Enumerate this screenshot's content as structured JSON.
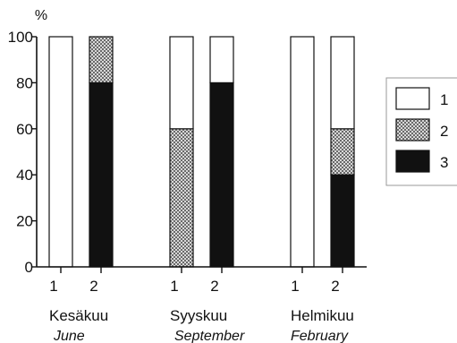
{
  "chart_data": {
    "type": "bar",
    "stacked": true,
    "ylabel": "%",
    "ylim": [
      0,
      100
    ],
    "yticks": [
      0,
      20,
      40,
      60,
      80,
      100
    ],
    "grid": false,
    "legend_position": "right",
    "colors": {
      "1": "#ffffff",
      "2": "#b5b5b5",
      "3": "#111111"
    },
    "groups": [
      {
        "name": "Kesäkuu",
        "name_en": "June",
        "bars": [
          {
            "label": "1",
            "values": {
              "3": 0,
              "2": 0,
              "1": 100
            }
          },
          {
            "label": "2",
            "values": {
              "3": 80,
              "2": 20,
              "1": 0
            }
          }
        ]
      },
      {
        "name": "Syyskuu",
        "name_en": "September",
        "bars": [
          {
            "label": "1",
            "values": {
              "3": 0,
              "2": 60,
              "1": 40
            }
          },
          {
            "label": "2",
            "values": {
              "3": 80,
              "2": 0,
              "1": 20
            }
          }
        ]
      },
      {
        "name": "Helmikuu",
        "name_en": "February",
        "bars": [
          {
            "label": "1",
            "values": {
              "3": 0,
              "2": 0,
              "1": 100
            }
          },
          {
            "label": "2",
            "values": {
              "3": 40,
              "2": 20,
              "1": 40
            }
          }
        ]
      }
    ],
    "legend": [
      {
        "key": "1",
        "label": "1"
      },
      {
        "key": "2",
        "label": "2"
      },
      {
        "key": "3",
        "label": "3"
      }
    ]
  }
}
